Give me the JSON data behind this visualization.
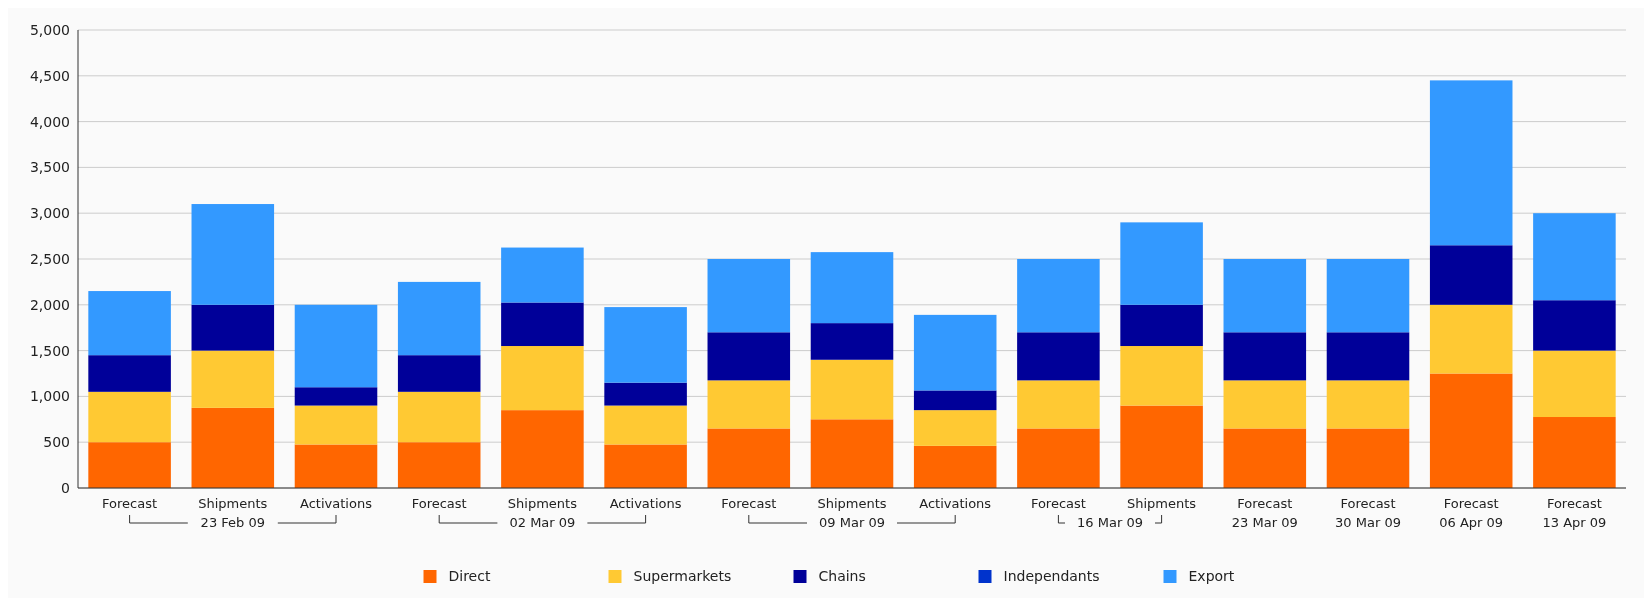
{
  "chart_data": {
    "type": "bar",
    "stacked": true,
    "categories": [
      "Forecast",
      "Shipments\n23 Feb 09",
      "Activations",
      "Forecast",
      "Shipments\n02 Mar 09",
      "Activations",
      "Forecast",
      "Shipments\n09 Mar 09",
      "Activations",
      "Forecast",
      "Shipments\n16 Mar 09",
      "Forecast\n23 Mar 09",
      "Forecast\n30 Mar 09",
      "Forecast\n06 Apr 09",
      "Forecast\n13 Apr 09"
    ],
    "series": [
      {
        "name": "Direct",
        "color": "#ff6600",
        "values": [
          500,
          875,
          475,
          500,
          850,
          475,
          650,
          750,
          460,
          650,
          900,
          650,
          650,
          1250,
          775
        ]
      },
      {
        "name": "Supermarkets",
        "color": "#ffc933",
        "values": [
          550,
          625,
          425,
          550,
          700,
          425,
          525,
          650,
          390,
          525,
          650,
          525,
          525,
          750,
          725
        ]
      },
      {
        "name": "Chains",
        "color": "#000099",
        "values": [
          400,
          500,
          200,
          400,
          475,
          250,
          525,
          400,
          215,
          525,
          450,
          525,
          525,
          650,
          550
        ]
      },
      {
        "name": "Independants",
        "color": "#0033cc",
        "values": [
          0,
          0,
          0,
          0,
          0,
          0,
          0,
          0,
          0,
          0,
          0,
          0,
          0,
          0,
          0
        ]
      },
      {
        "name": "Export",
        "color": "#3399ff",
        "values": [
          700,
          1100,
          900,
          800,
          600,
          825,
          800,
          775,
          825,
          800,
          900,
          800,
          800,
          1800,
          950
        ]
      }
    ],
    "ylim": [
      0,
      5000
    ],
    "yticks": [
      {
        "value": 0,
        "label": "0"
      },
      {
        "value": 500,
        "label": "500"
      },
      {
        "value": 1000,
        "label": "1,000"
      },
      {
        "value": 1500,
        "label": "1,500"
      },
      {
        "value": 2000,
        "label": "2,000"
      },
      {
        "value": 2500,
        "label": "2,500"
      },
      {
        "value": 3000,
        "label": "3,000"
      },
      {
        "value": 3500,
        "label": "3,500"
      },
      {
        "value": 4000,
        "label": "4,000"
      },
      {
        "value": 4500,
        "label": "4,500"
      },
      {
        "value": 5000,
        "label": "5,000"
      }
    ],
    "grid": "y",
    "legend": "bottom"
  }
}
